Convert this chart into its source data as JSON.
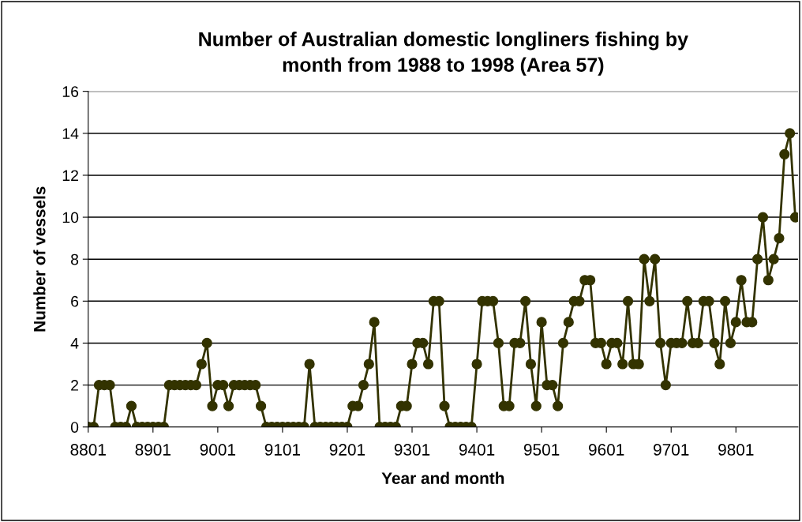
{
  "chart_data": {
    "type": "line",
    "title": "Number of Australian domestic longliners fishing by\nmonth from 1988 to 1998 (Area 57)",
    "xlabel": "Year and month",
    "ylabel": "Number of vessels",
    "categories": [
      "8801",
      null,
      null,
      null,
      null,
      null,
      null,
      null,
      null,
      null,
      null,
      null,
      "8901",
      null,
      null,
      null,
      null,
      null,
      null,
      null,
      null,
      null,
      null,
      null,
      "9001",
      null,
      null,
      null,
      null,
      null,
      null,
      null,
      null,
      null,
      null,
      null,
      "9101",
      null,
      null,
      null,
      null,
      null,
      null,
      null,
      null,
      null,
      null,
      null,
      "9201",
      null,
      null,
      null,
      null,
      null,
      null,
      null,
      null,
      null,
      null,
      null,
      "9301",
      null,
      null,
      null,
      null,
      null,
      null,
      null,
      null,
      null,
      null,
      null,
      "9401",
      null,
      null,
      null,
      null,
      null,
      null,
      null,
      null,
      null,
      null,
      null,
      "9501",
      null,
      null,
      null,
      null,
      null,
      null,
      null,
      null,
      null,
      null,
      null,
      "9601",
      null,
      null,
      null,
      null,
      null,
      null,
      null,
      null,
      null,
      null,
      null,
      "9701",
      null,
      null,
      null,
      null,
      null,
      null,
      null,
      null,
      null,
      null,
      null,
      "9801",
      null,
      null,
      null,
      null,
      null,
      null,
      null,
      null,
      null,
      null,
      null
    ],
    "series": [
      {
        "color": "#333300",
        "values": [
          0,
          0,
          2,
          2,
          2,
          0,
          0,
          0,
          1,
          0,
          0,
          0,
          0,
          0,
          0,
          2,
          2,
          2,
          2,
          2,
          2,
          3,
          4,
          1,
          2,
          2,
          1,
          2,
          2,
          2,
          2,
          2,
          1,
          0,
          0,
          0,
          0,
          0,
          0,
          0,
          0,
          3,
          0,
          0,
          0,
          0,
          0,
          0,
          0,
          1,
          1,
          2,
          3,
          5,
          0,
          0,
          0,
          0,
          1,
          1,
          3,
          4,
          4,
          3,
          6,
          6,
          1,
          0,
          0,
          0,
          0,
          0,
          3,
          6,
          6,
          6,
          4,
          1,
          1,
          4,
          4,
          6,
          3,
          1,
          5,
          2,
          2,
          1,
          4,
          5,
          6,
          6,
          7,
          7,
          4,
          4,
          3,
          4,
          4,
          3,
          6,
          3,
          3,
          8,
          6,
          8,
          4,
          2,
          4,
          4,
          4,
          6,
          4,
          4,
          6,
          6,
          4,
          3,
          6,
          4,
          5,
          7,
          5,
          5,
          8,
          10,
          7,
          8,
          9,
          13,
          14,
          10
        ]
      }
    ],
    "ylim": [
      0,
      16
    ],
    "yticks": [
      0,
      2,
      4,
      6,
      8,
      10,
      12,
      14,
      16
    ],
    "grid": "y",
    "marker": "circle",
    "line_style": "solid",
    "legend": false
  }
}
